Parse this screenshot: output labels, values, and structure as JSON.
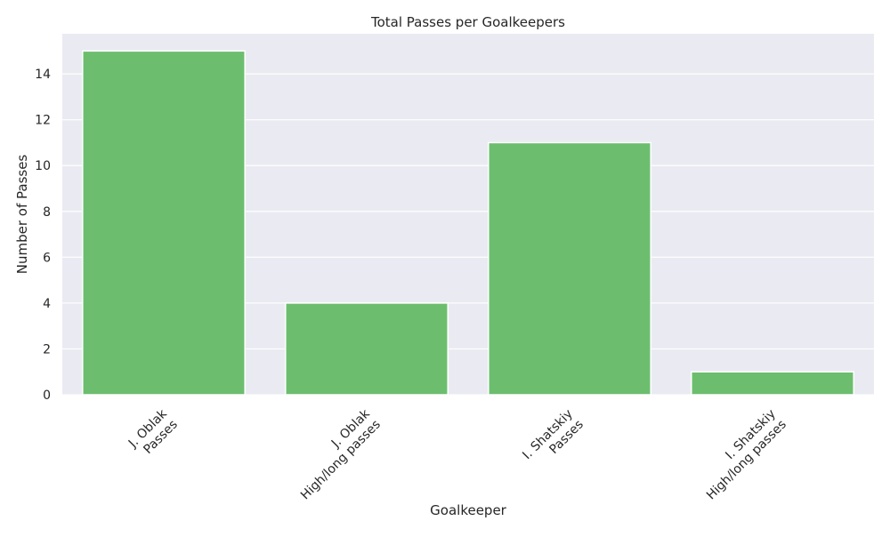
{
  "chart_data": {
    "type": "bar",
    "title": "Total Passes per Goalkeepers",
    "xlabel": "Goalkeeper",
    "ylabel": "Number of Passes",
    "categories": [
      [
        "J. Oblak",
        "Passes"
      ],
      [
        "J. Oblak",
        "High/long passes"
      ],
      [
        "I. Shatskiy",
        "Passes"
      ],
      [
        "I. Shatskiy",
        "High/long passes"
      ]
    ],
    "values": [
      15,
      4,
      11,
      1
    ],
    "ylim": [
      0,
      15.75
    ],
    "yticks": [
      "0",
      "2",
      "4",
      "6",
      "8",
      "10",
      "12",
      "14"
    ],
    "grid": true,
    "legend": "none",
    "colors": {
      "bar": "#6cbe6e",
      "bar_edge": "#ffffff",
      "plot_background": "#eaeaf2",
      "grid": "#ffffff"
    }
  }
}
